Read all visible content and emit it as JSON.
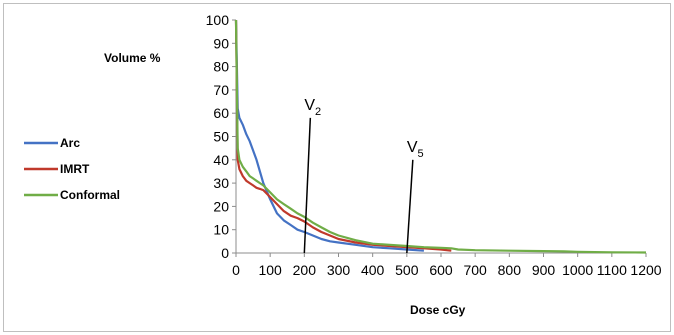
{
  "chart_data": {
    "type": "line",
    "title": "",
    "xlabel": "Dose cGy",
    "ylabel": "Volume %",
    "xlim": [
      0,
      1200
    ],
    "ylim": [
      0,
      100
    ],
    "x_ticks": [
      "0",
      "100",
      "200",
      "300",
      "400",
      "500",
      "600",
      "700",
      "800",
      "900",
      "1000",
      "1100",
      "1200"
    ],
    "y_ticks": [
      "0",
      "10",
      "20",
      "30",
      "40",
      "50",
      "60",
      "70",
      "80",
      "90",
      "100"
    ],
    "grid": false,
    "legend_position": "left",
    "series": [
      {
        "name": "Arc",
        "color": "#4472c4",
        "x": [
          0,
          5,
          10,
          20,
          30,
          40,
          50,
          60,
          70,
          80,
          100,
          120,
          140,
          160,
          180,
          200,
          225,
          250,
          275,
          300,
          350,
          400,
          450,
          500,
          550
        ],
        "y": [
          100,
          62,
          58,
          55,
          51,
          48,
          44,
          40,
          35,
          30,
          23,
          17,
          14,
          12,
          10,
          9,
          7.5,
          6,
          5,
          4.5,
          3.5,
          2.5,
          2,
          1.5,
          1
        ]
      },
      {
        "name": "IMRT",
        "color": "#c0392b",
        "x": [
          0,
          5,
          10,
          20,
          30,
          40,
          50,
          60,
          70,
          80,
          100,
          120,
          140,
          160,
          180,
          200,
          225,
          250,
          275,
          300,
          350,
          400,
          450,
          500,
          550,
          600,
          630
        ],
        "y": [
          100,
          40,
          36,
          33,
          31,
          30,
          29,
          28,
          27.5,
          27,
          24,
          21,
          18,
          16,
          15,
          13.5,
          11,
          9,
          7.5,
          6,
          4.5,
          3.5,
          3,
          2.5,
          2,
          1.5,
          1
        ]
      },
      {
        "name": "Conformal",
        "color": "#70ad47",
        "x": [
          0,
          5,
          10,
          20,
          30,
          40,
          50,
          60,
          70,
          80,
          100,
          120,
          140,
          160,
          180,
          200,
          225,
          250,
          275,
          300,
          350,
          400,
          450,
          500,
          550,
          600,
          630,
          650,
          700,
          800,
          900,
          960,
          1000,
          1100,
          1200
        ],
        "y": [
          100,
          45,
          40,
          37,
          35,
          33,
          32,
          31,
          30,
          29,
          26,
          23,
          21,
          19,
          17,
          15.5,
          13,
          11,
          9,
          7.5,
          5.5,
          4,
          3.5,
          3,
          2.5,
          2.2,
          2,
          1.5,
          1.2,
          1,
          0.8,
          0.7,
          0.5,
          0.3,
          0.2
        ]
      }
    ],
    "annotations": [
      {
        "label": "V",
        "sub": "2",
        "x": 200,
        "y_top": 58
      },
      {
        "label": "V",
        "sub": "5",
        "x": 500,
        "y_top": 40
      }
    ]
  }
}
